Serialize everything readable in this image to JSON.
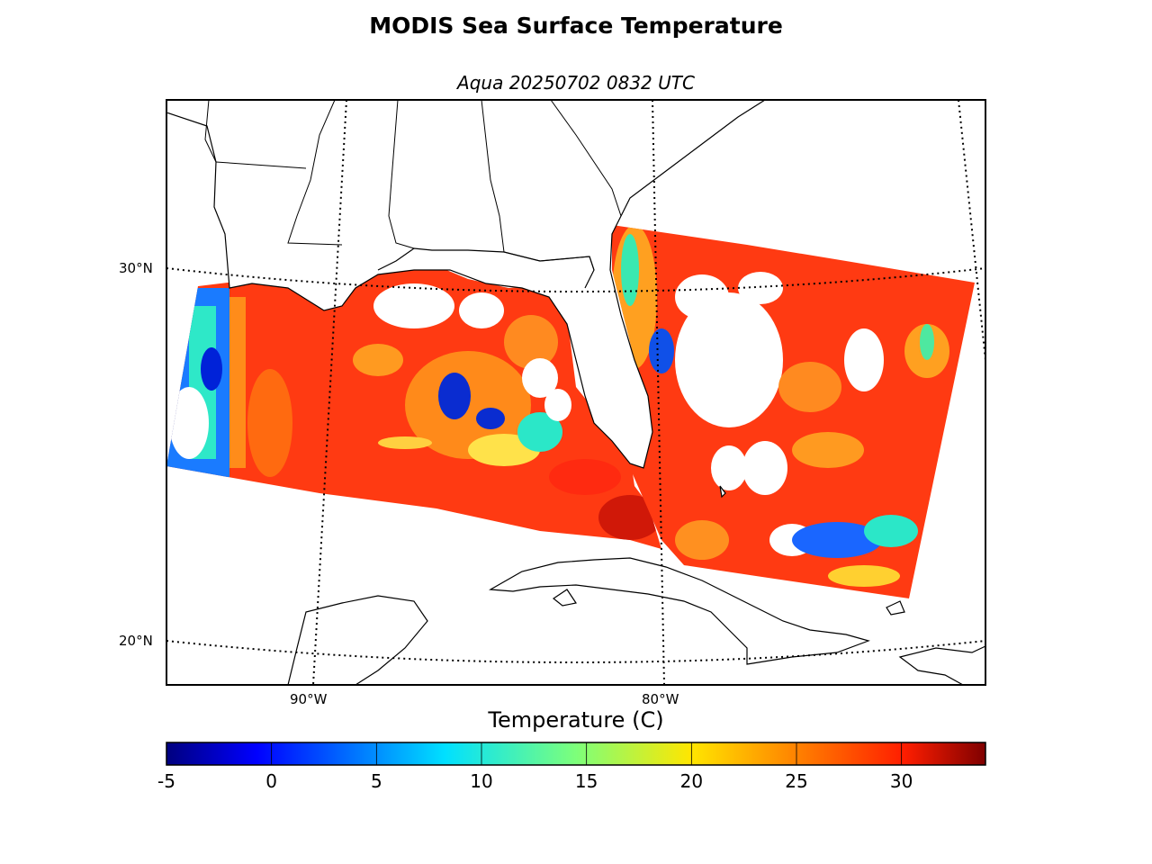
{
  "title": "MODIS Sea Surface Temperature",
  "subtitle": "Aqua 20250702 0832 UTC",
  "map": {
    "region": "Gulf of Mexico / Florida / Western Atlantic",
    "latitudes": [
      {
        "value": 30,
        "label": "30°N"
      },
      {
        "value": 20,
        "label": "20°N"
      }
    ],
    "longitudes": [
      {
        "value": -90,
        "label": "90°W"
      },
      {
        "value": -80,
        "label": "80°W"
      }
    ],
    "swath_data": "sea surface temperature, mostly 28–32 °C, cloud-masked gaps white",
    "colors": {
      "land_outline": "#000000",
      "background": "#ffffff",
      "graticule": "#000000"
    }
  },
  "colorbar": {
    "label": "Temperature (C)",
    "min": -5,
    "max": 34,
    "colormap": "jet",
    "ticks": [
      "-5",
      "0",
      "5",
      "10",
      "15",
      "20",
      "25",
      "30"
    ]
  }
}
